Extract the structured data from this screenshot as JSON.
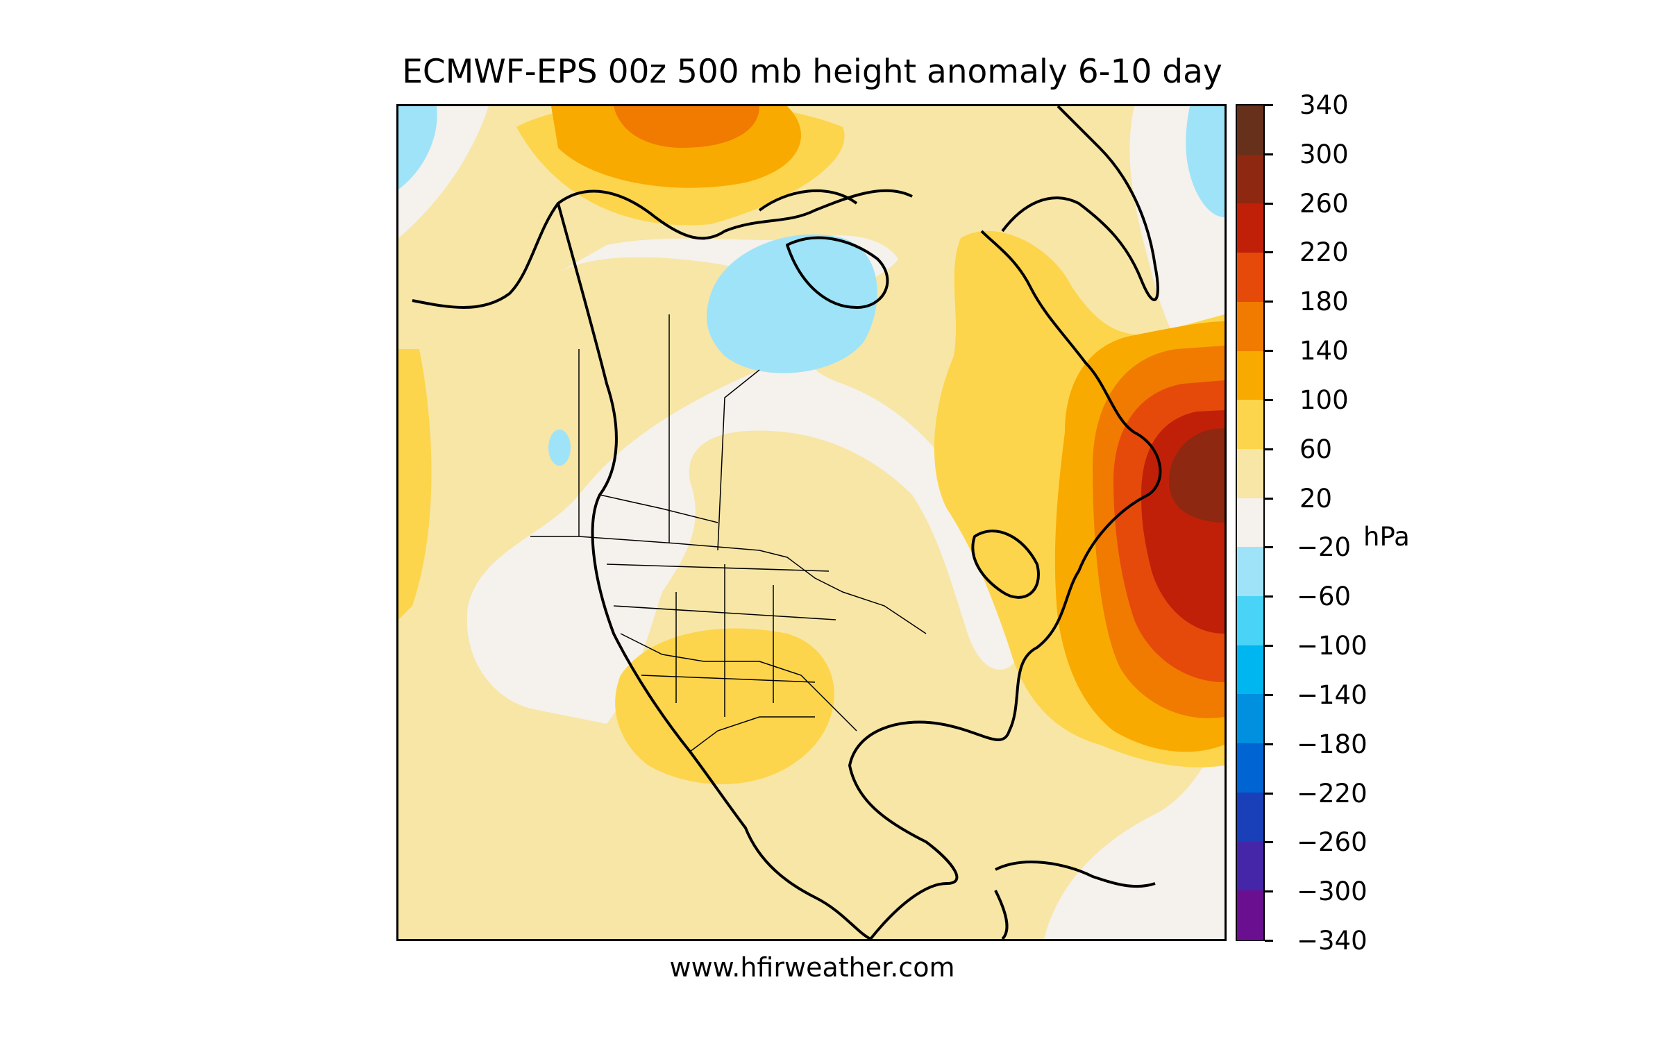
{
  "title": "ECMWF-EPS 00z 500 mb height anomaly 6-10 day",
  "credit": "www.hfirweather.com",
  "colorbar": {
    "unit": "hPa",
    "tick_labels": [
      "340",
      "300",
      "260",
      "220",
      "180",
      "140",
      "100",
      "60",
      "20",
      "−20",
      "−60",
      "−100",
      "−140",
      "−180",
      "−220",
      "−260",
      "−300",
      "−340"
    ],
    "bins": [
      {
        "range": "300 to 340",
        "color": "#67301b"
      },
      {
        "range": "260 to 300",
        "color": "#8e2810"
      },
      {
        "range": "220 to 260",
        "color": "#c02008"
      },
      {
        "range": "180 to 220",
        "color": "#e54a0a"
      },
      {
        "range": "140 to 180",
        "color": "#f07b00"
      },
      {
        "range": "100 to 140",
        "color": "#f9aa00"
      },
      {
        "range": "60 to 100",
        "color": "#fdd54c"
      },
      {
        "range": "20 to 60",
        "color": "#f7e6a6"
      },
      {
        "range": "-20 to 20",
        "color": "#f5f1ec"
      },
      {
        "range": "-60 to -20",
        "color": "#9fe3f8"
      },
      {
        "range": "-100 to -60",
        "color": "#48d3f7"
      },
      {
        "range": "-140 to -100",
        "color": "#00b6f0"
      },
      {
        "range": "-180 to -140",
        "color": "#0090df"
      },
      {
        "range": "-220 to -180",
        "color": "#0064d2"
      },
      {
        "range": "-260 to -220",
        "color": "#1940b8"
      },
      {
        "range": "-300 to -260",
        "color": "#4526a8"
      },
      {
        "range": "-340 to -300",
        "color": "#6a0f90"
      }
    ]
  },
  "map": {
    "region": "North America",
    "variable": "500 mb height anomaly",
    "features": [
      {
        "name": "positive anomaly maximum",
        "location": "off Newfoundland / northwest Atlantic",
        "approx_value_range": "260 to 300"
      },
      {
        "name": "positive anomaly",
        "location": "north of Alaska / Arctic Ocean",
        "approx_value_range": "140 to 180"
      },
      {
        "name": "negative anomaly",
        "location": "Canadian Arctic Archipelago",
        "approx_value_range": "-60 to -20"
      },
      {
        "name": "negative anomaly",
        "location": "Greenland Sea (northeast corner)",
        "approx_value_range": "-60 to -20"
      },
      {
        "name": "negative anomaly",
        "location": "Bering Sea (northwest corner)",
        "approx_value_range": "-60 to -20"
      },
      {
        "name": "positive anomaly",
        "location": "US Southwest / Four Corners",
        "approx_value_range": "60 to 100"
      },
      {
        "name": "near-normal",
        "location": "western Canada and Great Lakes",
        "approx_value_range": "-20 to 20"
      }
    ]
  }
}
